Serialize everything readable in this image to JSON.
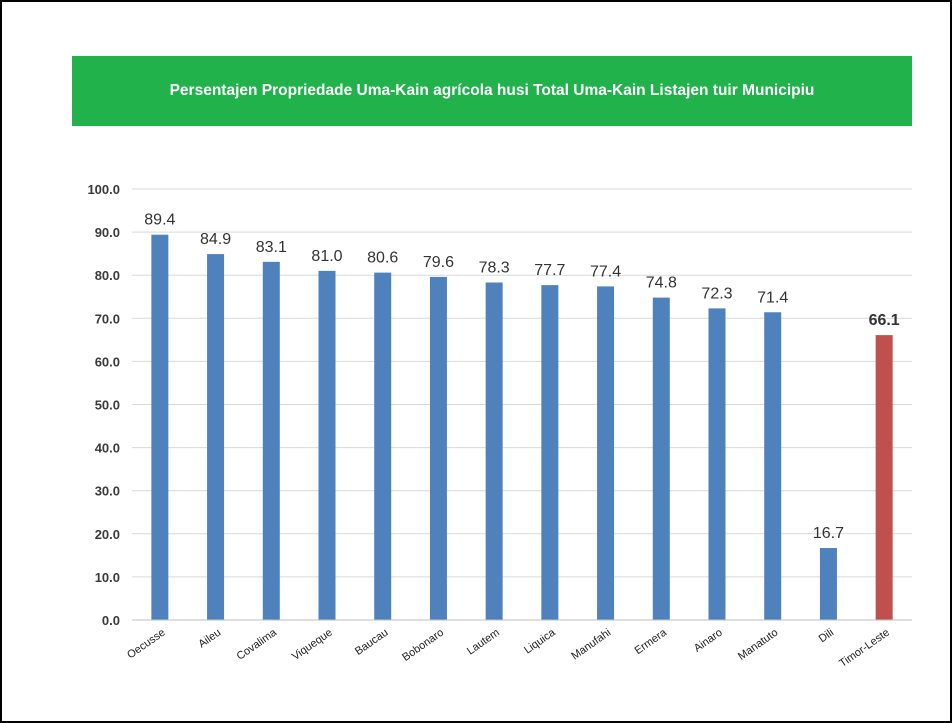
{
  "colors": {
    "banner": "#21b24b",
    "bar_default": "#4f81bd",
    "bar_highlight": "#c0504d",
    "grid": "#d9d9d9"
  },
  "chart_data": {
    "type": "bar",
    "title": "Persentajen Propriedade Uma-Kain agrícola husi Total Uma-Kain Listajen tuir Municipiu",
    "categories": [
      "Oecusse",
      "Aileu",
      "Covalima",
      "Viqueque",
      "Baucau",
      "Bobonaro",
      "Lautem",
      "Liquica",
      "Manufahi",
      "Ermera",
      "Ainaro",
      "Manatuto",
      "Dili",
      "Timor-Leste"
    ],
    "values": [
      89.4,
      84.9,
      83.1,
      81.0,
      80.6,
      79.6,
      78.3,
      77.7,
      77.4,
      74.8,
      72.3,
      71.4,
      16.7,
      66.1
    ],
    "highlight_category": "Timor-Leste",
    "ylim": [
      0,
      100
    ],
    "yticks": [
      "0.0",
      "10.0",
      "20.0",
      "30.0",
      "40.0",
      "50.0",
      "60.0",
      "70.0",
      "80.0",
      "90.0",
      "100.0"
    ],
    "grid": true,
    "legend": "none",
    "xlabel": "",
    "ylabel": ""
  }
}
